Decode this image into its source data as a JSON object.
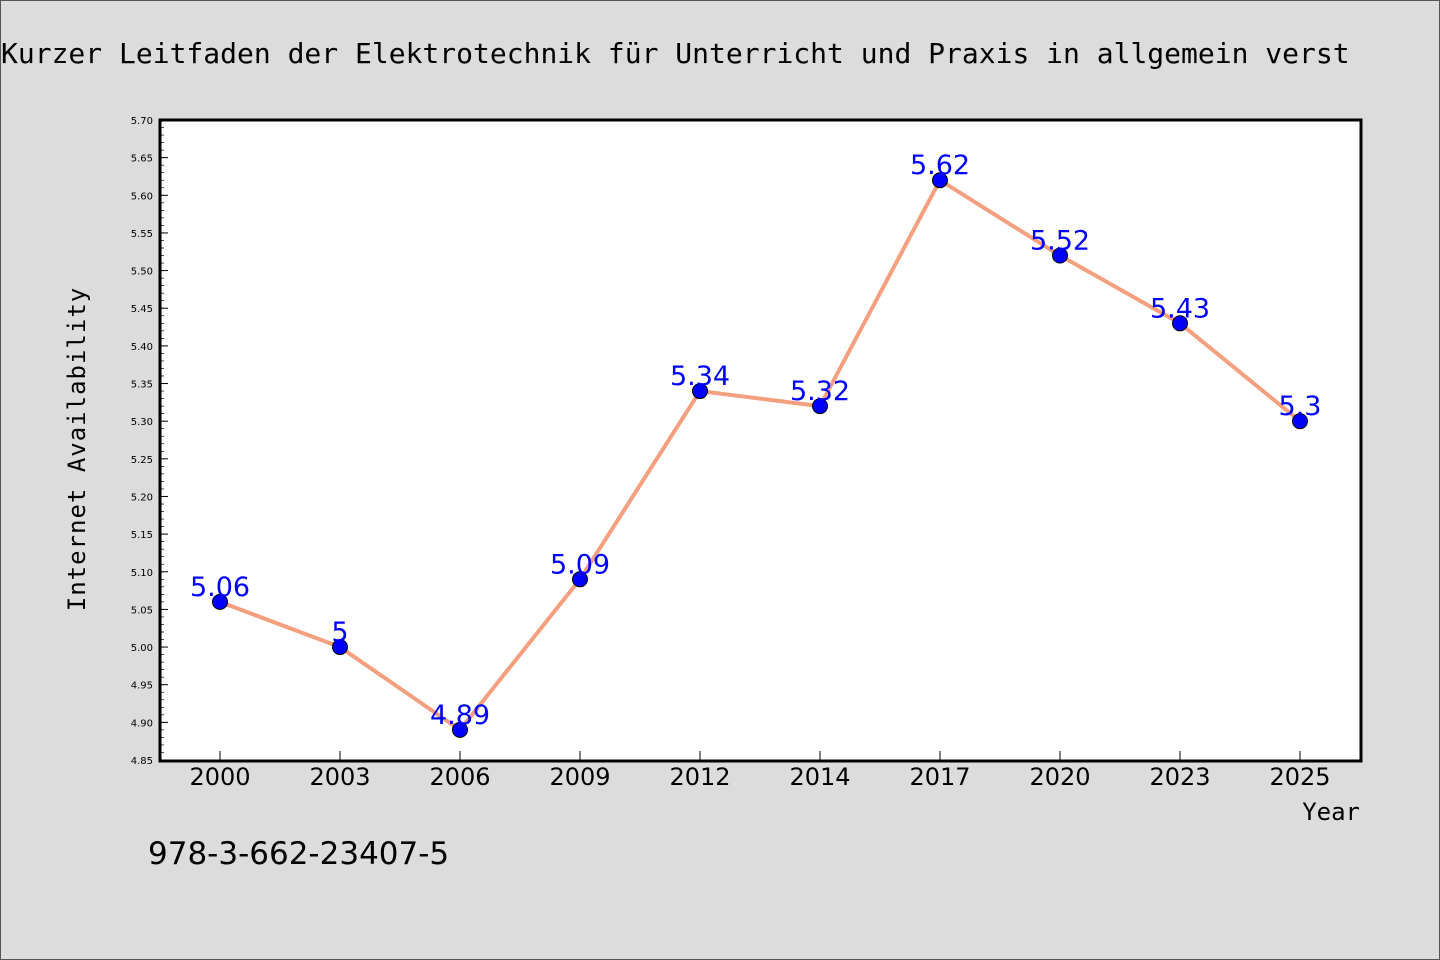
{
  "colors": {
    "background": "#dcdcdc",
    "plot_background": "#ffffff",
    "line": "#f4a07e",
    "marker": "#0000ff",
    "data_label": "#0000ff"
  },
  "footer": {
    "isbn": "978-3-662-23407-5"
  },
  "chart_data": {
    "type": "line",
    "title": "Kurzer Leitfaden der Elektrotechnik für Unterricht und Praxis in allgemein verst",
    "xlabel": "Year",
    "ylabel": "Internet Availability",
    "categories": [
      "2000",
      "2003",
      "2006",
      "2009",
      "2012",
      "2014",
      "2017",
      "2020",
      "2023",
      "2025"
    ],
    "series": [
      {
        "values": [
          5.06,
          5.0,
          4.89,
          5.09,
          5.34,
          5.32,
          5.62,
          5.52,
          5.43,
          5.3
        ],
        "data_labels": [
          "5.06",
          "5",
          "4.89",
          "5.09",
          "5.34",
          "5.32",
          "5.62",
          "5.52",
          "5.43",
          "5.3"
        ]
      }
    ],
    "ylim": [
      4.85,
      5.7
    ],
    "yticks": [
      "4.85",
      "4.90",
      "4.95",
      "5.00",
      "5.05",
      "5.10",
      "5.15",
      "5.20",
      "5.25",
      "5.30",
      "5.35",
      "5.40",
      "5.45",
      "5.50",
      "5.55",
      "5.60",
      "5.65",
      "5.70"
    ],
    "grid": false,
    "legend": "none"
  }
}
